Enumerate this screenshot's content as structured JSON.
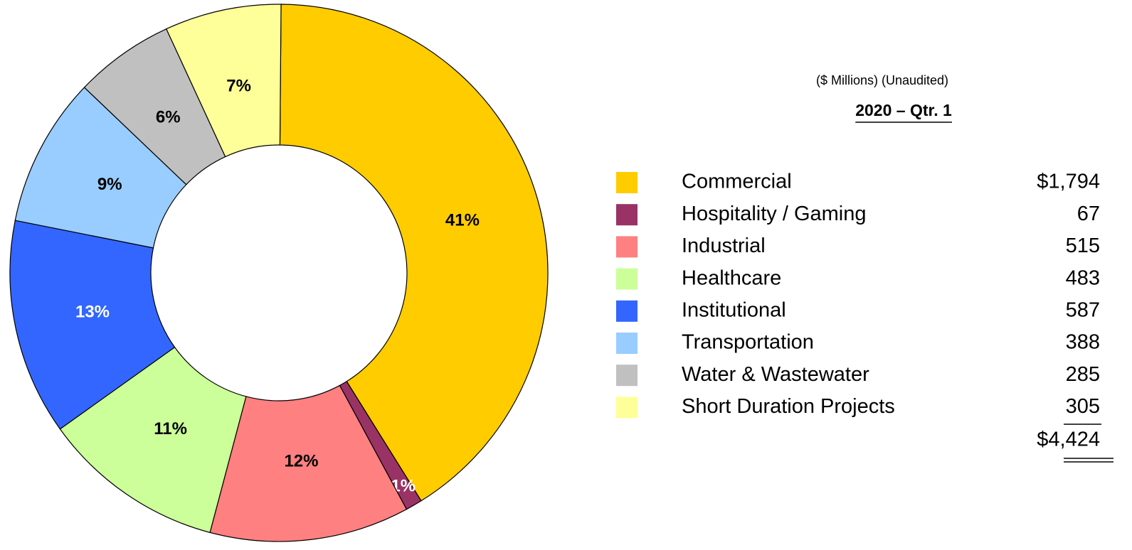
{
  "chart_data": {
    "type": "donut",
    "subtitle": "($ Millions) (Unaudited)",
    "table_title": "2020 – Qtr. 1",
    "categories": [
      "Commercial",
      "Hospitality / Gaming",
      "Industrial",
      "Healthcare",
      "Institutional",
      "Transportation",
      "Water & Wastewater",
      "Short Duration Projects"
    ],
    "values": [
      41,
      1,
      12,
      11,
      13,
      9,
      6,
      7
    ],
    "value_labels": [
      "41%",
      "1%",
      "12%",
      "11%",
      "13%",
      "9%",
      "6%",
      "7%"
    ],
    "colors": [
      "#FFCC00",
      "#993366",
      "#FF8080",
      "#CCFF99",
      "#3366FF",
      "#99CCFF",
      "#C0C0C0",
      "#FFFF99"
    ],
    "label_colors": [
      "#000000",
      "#FFFFFF",
      "#000000",
      "#000000",
      "#FFFFFF",
      "#000000",
      "#000000",
      "#000000"
    ],
    "amounts": [
      1794,
      67,
      515,
      483,
      587,
      388,
      285,
      305
    ],
    "amount_labels": [
      "$1,794",
      "67",
      "515",
      "483",
      "587",
      "388",
      "285",
      "305"
    ],
    "total": 4424,
    "total_label": "$4,424"
  }
}
